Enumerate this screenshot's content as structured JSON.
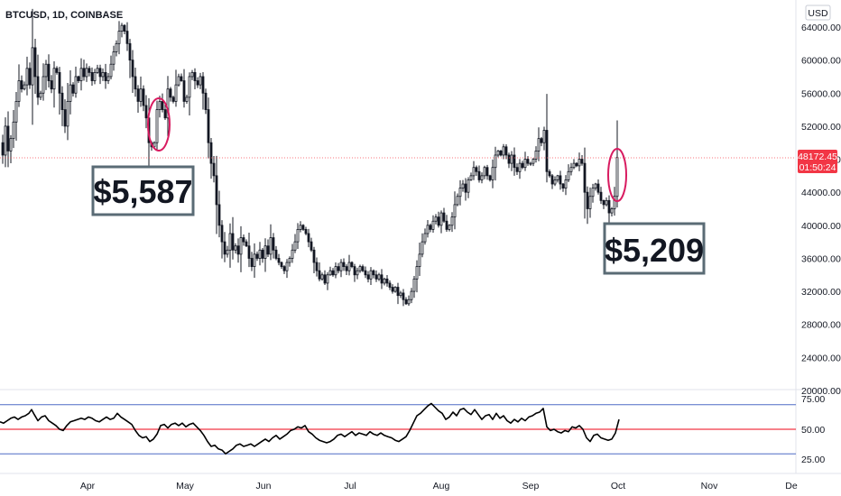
{
  "chart_data": {
    "type": "candlestick",
    "title": "BTCUSD, 1D, COINBASE",
    "currency": "USD",
    "y_ticks": [
      "64000.00",
      "60000.00",
      "56000.00",
      "52000.00",
      "48000.00",
      "44000.00",
      "40000.00",
      "36000.00",
      "32000.00",
      "28000.00",
      "24000.00",
      "20000.00"
    ],
    "ylim": [
      18000,
      66400
    ],
    "x_ticks": [
      "Apr",
      "May",
      "Jun",
      "Jul",
      "Aug",
      "Sep",
      "Oct",
      "Nov",
      "De"
    ],
    "last_price": "48172.45",
    "countdown": "01:50:24",
    "price_line": 48172.45,
    "close_path": [
      [
        0,
        50000
      ],
      [
        3,
        48500
      ],
      [
        6,
        52000
      ],
      [
        9,
        49000
      ],
      [
        12,
        50500
      ],
      [
        15,
        52500
      ],
      [
        18,
        55000
      ],
      [
        21,
        57500
      ],
      [
        24,
        56500
      ],
      [
        27,
        57000
      ],
      [
        30,
        59000
      ],
      [
        33,
        57000
      ],
      [
        36,
        61500
      ],
      [
        39,
        58000
      ],
      [
        42,
        55500
      ],
      [
        45,
        56000
      ],
      [
        48,
        58000
      ],
      [
        51,
        59500
      ],
      [
        54,
        57500
      ],
      [
        57,
        56500
      ],
      [
        60,
        59000
      ],
      [
        63,
        58500
      ],
      [
        66,
        56000
      ],
      [
        69,
        54000
      ],
      [
        72,
        52000
      ],
      [
        75,
        55000
      ],
      [
        78,
        57000
      ],
      [
        81,
        56000
      ],
      [
        84,
        58000
      ],
      [
        87,
        57500
      ],
      [
        90,
        59000
      ],
      [
        93,
        58000
      ],
      [
        96,
        59000
      ],
      [
        99,
        58500
      ],
      [
        102,
        57500
      ],
      [
        105,
        58500
      ],
      [
        108,
        59000
      ],
      [
        111,
        58000
      ],
      [
        114,
        58500
      ],
      [
        117,
        57500
      ],
      [
        120,
        58000
      ],
      [
        123,
        59500
      ],
      [
        126,
        61000
      ],
      [
        129,
        62000
      ],
      [
        132,
        63500
      ],
      [
        135,
        64200
      ],
      [
        138,
        63500
      ],
      [
        141,
        62000
      ],
      [
        144,
        60000
      ],
      [
        147,
        58000
      ],
      [
        150,
        56500
      ],
      [
        153,
        55000
      ],
      [
        156,
        56500
      ],
      [
        159,
        54500
      ],
      [
        162,
        53000
      ],
      [
        165,
        50000
      ],
      [
        168,
        49500
      ],
      [
        171,
        50000
      ],
      [
        174,
        54000
      ],
      [
        177,
        55000
      ],
      [
        180,
        54000
      ],
      [
        183,
        53000
      ],
      [
        186,
        56500
      ],
      [
        189,
        55500
      ],
      [
        192,
        55000
      ],
      [
        195,
        57000
      ],
      [
        198,
        58000
      ],
      [
        201,
        57500
      ],
      [
        204,
        55000
      ],
      [
        207,
        55500
      ],
      [
        210,
        58000
      ],
      [
        213,
        58500
      ],
      [
        216,
        57500
      ],
      [
        219,
        57000
      ],
      [
        222,
        58000
      ],
      [
        225,
        56000
      ],
      [
        228,
        54000
      ],
      [
        231,
        50000
      ],
      [
        234,
        47500
      ],
      [
        237,
        46000
      ],
      [
        240,
        42500
      ],
      [
        243,
        40000
      ],
      [
        246,
        38000
      ],
      [
        249,
        36500
      ],
      [
        252,
        37000
      ],
      [
        255,
        39000
      ],
      [
        258,
        37000
      ],
      [
        261,
        37500
      ],
      [
        264,
        36500
      ],
      [
        267,
        38500
      ],
      [
        270,
        38000
      ],
      [
        273,
        37500
      ],
      [
        276,
        36000
      ],
      [
        279,
        35000
      ],
      [
        282,
        36500
      ],
      [
        285,
        36000
      ],
      [
        288,
        37000
      ],
      [
        291,
        36000
      ],
      [
        294,
        37500
      ],
      [
        297,
        36500
      ],
      [
        300,
        38500
      ],
      [
        303,
        37000
      ],
      [
        306,
        36000
      ],
      [
        309,
        35500
      ],
      [
        312,
        35000
      ],
      [
        315,
        34500
      ],
      [
        318,
        35500
      ],
      [
        321,
        36000
      ],
      [
        324,
        37000
      ],
      [
        327,
        38000
      ],
      [
        330,
        39500
      ],
      [
        333,
        40000
      ],
      [
        336,
        39500
      ],
      [
        339,
        39000
      ],
      [
        342,
        38000
      ],
      [
        345,
        37000
      ],
      [
        348,
        35500
      ],
      [
        351,
        34500
      ],
      [
        354,
        33500
      ],
      [
        357,
        34000
      ],
      [
        360,
        33000
      ],
      [
        363,
        34000
      ],
      [
        366,
        34500
      ],
      [
        369,
        34000
      ],
      [
        372,
        35000
      ],
      [
        375,
        34500
      ],
      [
        378,
        35500
      ],
      [
        381,
        35000
      ],
      [
        384,
        34500
      ],
      [
        387,
        35500
      ],
      [
        390,
        35000
      ],
      [
        393,
        34000
      ],
      [
        396,
        34500
      ],
      [
        399,
        35000
      ],
      [
        402,
        34500
      ],
      [
        405,
        34000
      ],
      [
        408,
        33500
      ],
      [
        411,
        34500
      ],
      [
        414,
        34000
      ],
      [
        417,
        33500
      ],
      [
        420,
        34000
      ],
      [
        423,
        33000
      ],
      [
        426,
        33500
      ],
      [
        429,
        33000
      ],
      [
        432,
        32500
      ],
      [
        435,
        32000
      ],
      [
        438,
        32500
      ],
      [
        441,
        31500
      ],
      [
        444,
        31800
      ],
      [
        447,
        31000
      ],
      [
        450,
        30500
      ],
      [
        453,
        31000
      ],
      [
        456,
        32000
      ],
      [
        459,
        33500
      ],
      [
        462,
        35000
      ],
      [
        465,
        36500
      ],
      [
        468,
        38000
      ],
      [
        471,
        39000
      ],
      [
        474,
        40000
      ],
      [
        477,
        39500
      ],
      [
        480,
        40500
      ],
      [
        483,
        41000
      ],
      [
        486,
        40000
      ],
      [
        489,
        41500
      ],
      [
        492,
        40500
      ],
      [
        495,
        39500
      ],
      [
        498,
        40000
      ],
      [
        501,
        41000
      ],
      [
        504,
        42500
      ],
      [
        507,
        43500
      ],
      [
        510,
        44500
      ],
      [
        513,
        45000
      ],
      [
        516,
        44000
      ],
      [
        519,
        45500
      ],
      [
        522,
        46000
      ],
      [
        525,
        47000
      ],
      [
        528,
        46500
      ],
      [
        531,
        45500
      ],
      [
        534,
        46000
      ],
      [
        537,
        47000
      ],
      [
        540,
        46000
      ],
      [
        543,
        45500
      ],
      [
        546,
        47000
      ],
      [
        549,
        48500
      ],
      [
        552,
        49000
      ],
      [
        555,
        48500
      ],
      [
        558,
        49500
      ],
      [
        561,
        48500
      ],
      [
        564,
        47500
      ],
      [
        567,
        48500
      ],
      [
        570,
        47000
      ],
      [
        573,
        46500
      ],
      [
        576,
        47500
      ],
      [
        579,
        47000
      ],
      [
        582,
        48000
      ],
      [
        585,
        47500
      ],
      [
        588,
        47500
      ],
      [
        591,
        48000
      ],
      [
        594,
        49000
      ],
      [
        597,
        50500
      ],
      [
        600,
        50000
      ],
      [
        603,
        51500
      ],
      [
        606,
        46500
      ],
      [
        609,
        46000
      ],
      [
        612,
        45000
      ],
      [
        615,
        45500
      ],
      [
        618,
        46000
      ],
      [
        621,
        45000
      ],
      [
        624,
        44500
      ],
      [
        627,
        45500
      ],
      [
        630,
        46500
      ],
      [
        633,
        47000
      ],
      [
        636,
        47500
      ],
      [
        639,
        47200
      ],
      [
        642,
        48000
      ],
      [
        645,
        47500
      ],
      [
        648,
        44000
      ],
      [
        651,
        42000
      ],
      [
        654,
        43500
      ],
      [
        657,
        44500
      ],
      [
        660,
        45000
      ],
      [
        663,
        44000
      ],
      [
        666,
        43000
      ],
      [
        669,
        42500
      ],
      [
        672,
        43000
      ],
      [
        675,
        41500
      ],
      [
        678,
        42000
      ],
      [
        681,
        43500
      ],
      [
        684,
        48200
      ]
    ],
    "rsi": {
      "levels": [
        "75.00",
        "50.00",
        "25.00"
      ],
      "upper": 70,
      "middle": 50,
      "lower": 30,
      "current": 58,
      "path": [
        [
          0,
          56
        ],
        [
          4,
          55
        ],
        [
          8,
          57
        ],
        [
          12,
          59
        ],
        [
          16,
          60
        ],
        [
          20,
          58
        ],
        [
          24,
          60
        ],
        [
          28,
          61
        ],
        [
          32,
          63
        ],
        [
          35,
          66
        ],
        [
          38,
          62
        ],
        [
          42,
          57
        ],
        [
          46,
          60
        ],
        [
          50,
          61
        ],
        [
          54,
          57
        ],
        [
          58,
          55
        ],
        [
          62,
          53
        ],
        [
          66,
          50
        ],
        [
          70,
          49
        ],
        [
          74,
          53
        ],
        [
          78,
          56
        ],
        [
          82,
          57
        ],
        [
          86,
          58
        ],
        [
          90,
          59
        ],
        [
          94,
          58
        ],
        [
          98,
          60
        ],
        [
          102,
          59
        ],
        [
          106,
          57
        ],
        [
          110,
          56
        ],
        [
          114,
          58
        ],
        [
          118,
          60
        ],
        [
          122,
          58
        ],
        [
          126,
          59
        ],
        [
          130,
          63
        ],
        [
          134,
          60
        ],
        [
          138,
          58
        ],
        [
          142,
          56
        ],
        [
          146,
          54
        ],
        [
          150,
          49
        ],
        [
          154,
          45
        ],
        [
          158,
          43
        ],
        [
          162,
          44
        ],
        [
          166,
          40
        ],
        [
          170,
          42
        ],
        [
          174,
          46
        ],
        [
          178,
          53
        ],
        [
          182,
          54
        ],
        [
          186,
          51
        ],
        [
          190,
          54
        ],
        [
          194,
          55
        ],
        [
          198,
          53
        ],
        [
          202,
          55
        ],
        [
          206,
          52
        ],
        [
          210,
          54
        ],
        [
          214,
          55
        ],
        [
          218,
          52
        ],
        [
          222,
          49
        ],
        [
          226,
          45
        ],
        [
          230,
          40
        ],
        [
          234,
          36
        ],
        [
          238,
          37
        ],
        [
          242,
          34
        ],
        [
          246,
          33
        ],
        [
          250,
          30
        ],
        [
          254,
          32
        ],
        [
          258,
          34
        ],
        [
          262,
          37
        ],
        [
          266,
          38
        ],
        [
          270,
          36
        ],
        [
          274,
          37
        ],
        [
          278,
          38
        ],
        [
          282,
          36
        ],
        [
          286,
          38
        ],
        [
          290,
          40
        ],
        [
          294,
          42
        ],
        [
          298,
          40
        ],
        [
          302,
          43
        ],
        [
          306,
          45
        ],
        [
          310,
          42
        ],
        [
          314,
          44
        ],
        [
          318,
          46
        ],
        [
          322,
          49
        ],
        [
          326,
          50
        ],
        [
          330,
          52
        ],
        [
          334,
          51
        ],
        [
          338,
          53
        ],
        [
          342,
          48
        ],
        [
          346,
          46
        ],
        [
          350,
          43
        ],
        [
          354,
          41
        ],
        [
          358,
          40
        ],
        [
          362,
          39
        ],
        [
          366,
          40
        ],
        [
          370,
          42
        ],
        [
          374,
          45
        ],
        [
          378,
          46
        ],
        [
          382,
          44
        ],
        [
          386,
          46
        ],
        [
          390,
          48
        ],
        [
          394,
          45
        ],
        [
          398,
          47
        ],
        [
          402,
          46
        ],
        [
          406,
          45
        ],
        [
          410,
          48
        ],
        [
          414,
          46
        ],
        [
          418,
          45
        ],
        [
          422,
          47
        ],
        [
          426,
          45
        ],
        [
          430,
          44
        ],
        [
          434,
          43
        ],
        [
          438,
          41
        ],
        [
          442,
          40
        ],
        [
          446,
          42
        ],
        [
          450,
          44
        ],
        [
          454,
          49
        ],
        [
          458,
          55
        ],
        [
          462,
          61
        ],
        [
          466,
          63
        ],
        [
          470,
          66
        ],
        [
          474,
          69
        ],
        [
          478,
          71
        ],
        [
          482,
          68
        ],
        [
          486,
          65
        ],
        [
          490,
          63
        ],
        [
          494,
          58
        ],
        [
          498,
          60
        ],
        [
          502,
          64
        ],
        [
          506,
          61
        ],
        [
          510,
          66
        ],
        [
          514,
          67
        ],
        [
          518,
          64
        ],
        [
          522,
          62
        ],
        [
          526,
          66
        ],
        [
          530,
          62
        ],
        [
          534,
          58
        ],
        [
          538,
          61
        ],
        [
          542,
          62
        ],
        [
          546,
          58
        ],
        [
          550,
          63
        ],
        [
          554,
          59
        ],
        [
          558,
          61
        ],
        [
          562,
          57
        ],
        [
          566,
          55
        ],
        [
          570,
          58
        ],
        [
          574,
          56
        ],
        [
          578,
          59
        ],
        [
          582,
          57
        ],
        [
          586,
          60
        ],
        [
          590,
          61
        ],
        [
          594,
          63
        ],
        [
          598,
          64
        ],
        [
          602,
          67
        ],
        [
          606,
          52
        ],
        [
          610,
          49
        ],
        [
          614,
          50
        ],
        [
          618,
          48
        ],
        [
          622,
          47
        ],
        [
          626,
          49
        ],
        [
          630,
          48
        ],
        [
          634,
          52
        ],
        [
          638,
          51
        ],
        [
          642,
          53
        ],
        [
          646,
          50
        ],
        [
          650,
          43
        ],
        [
          654,
          40
        ],
        [
          658,
          45
        ],
        [
          662,
          46
        ],
        [
          666,
          43
        ],
        [
          670,
          42
        ],
        [
          674,
          41
        ],
        [
          678,
          42
        ],
        [
          682,
          47
        ],
        [
          686,
          58
        ]
      ]
    },
    "annotations": [
      {
        "text": "$5,587"
      },
      {
        "text": "$5,209"
      }
    ],
    "colors": {
      "candle": "#131722",
      "price_line": "#f7525f",
      "price_tag": "#f23645",
      "rsi_line": "#000000",
      "rsi_mid": "#f23645",
      "rsi_band": "#4f6cc5",
      "ellipse": "#d81b60",
      "callout_border": "#5a6b75"
    }
  }
}
